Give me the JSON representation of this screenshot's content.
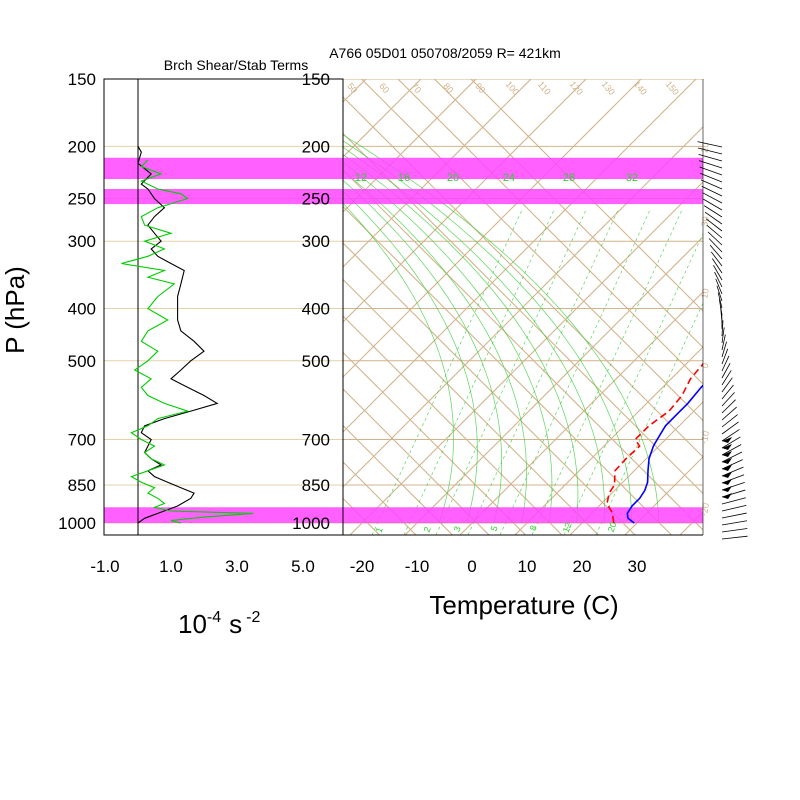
{
  "header": {
    "left_title": "Brch Shear/Stab Terms",
    "right_title": "A766 05D01 050708/2059 R= 421km"
  },
  "colors": {
    "isotherm_grid": "#d2b48c",
    "dry_adiabat": "#d2b48c",
    "moist_adiabat": "#32cd32",
    "mixing_ratio": "#32cd32",
    "highlight_band": "#ff44ff",
    "temperature": "#0000ff",
    "dewpoint": "#ff0000",
    "shear": "#000000",
    "stability": "#00cc00"
  },
  "chart_data": [
    {
      "type": "line",
      "panel": "shear-stability",
      "title": "Brch Shear/Stab Terms",
      "xlabel": "10-4 s -2",
      "xlabel_base": "10",
      "xlabel_exp": "-4",
      "xlabel_unit": "s",
      "xlabel_unit_exp": "-2",
      "ylabel": "P (hPa)",
      "xlim": [
        -1.0,
        5.0
      ],
      "x_ticks": [
        "-1.0",
        "1.0",
        "3.0",
        "5.0"
      ],
      "x_tick_values": [
        -1.0,
        1.0,
        3.0,
        5.0
      ],
      "y_ticks": [
        150,
        200,
        250,
        300,
        400,
        500,
        700,
        850,
        1000
      ],
      "ylim_hpa": [
        1000,
        150
      ],
      "y_scale": "log",
      "series": [
        {
          "color": "#000000",
          "points": [
            [
              0.0,
              1000
            ],
            [
              0.2,
              980
            ],
            [
              0.6,
              960
            ],
            [
              1.2,
              930
            ],
            [
              1.6,
              900
            ],
            [
              1.7,
              880
            ],
            [
              1.3,
              860
            ],
            [
              0.9,
              840
            ],
            [
              0.5,
              820
            ],
            [
              0.3,
              800
            ],
            [
              0.7,
              780
            ],
            [
              0.4,
              760
            ],
            [
              0.2,
              740
            ],
            [
              0.3,
              720
            ],
            [
              0.4,
              700
            ],
            [
              0.1,
              680
            ],
            [
              0.2,
              660
            ],
            [
              0.8,
              640
            ],
            [
              1.6,
              620
            ],
            [
              2.4,
              600
            ],
            [
              2.0,
              580
            ],
            [
              1.5,
              560
            ],
            [
              1.0,
              540
            ],
            [
              1.3,
              520
            ],
            [
              1.6,
              500
            ],
            [
              2.0,
              480
            ],
            [
              1.7,
              460
            ],
            [
              1.3,
              440
            ],
            [
              1.2,
              420
            ],
            [
              1.2,
              400
            ],
            [
              1.2,
              380
            ],
            [
              1.3,
              360
            ],
            [
              1.4,
              340
            ],
            [
              1.0,
              330
            ],
            [
              0.6,
              320
            ],
            [
              0.4,
              310
            ],
            [
              0.7,
              300
            ],
            [
              0.5,
              290
            ],
            [
              0.3,
              280
            ],
            [
              0.5,
              270
            ],
            [
              0.8,
              260
            ],
            [
              0.5,
              250
            ],
            [
              0.3,
              240
            ],
            [
              0.1,
              235
            ],
            [
              0.4,
              225
            ],
            [
              0.0,
              215
            ],
            [
              0.1,
              205
            ],
            [
              0.0,
              200
            ]
          ]
        },
        {
          "color": "#00cc00",
          "points": [
            [
              1.3,
              1000
            ],
            [
              1.0,
              990
            ],
            [
              1.3,
              985
            ],
            [
              2.0,
              975
            ],
            [
              3.5,
              960
            ],
            [
              1.0,
              950
            ],
            [
              0.5,
              935
            ],
            [
              0.8,
              920
            ],
            [
              0.6,
              900
            ],
            [
              0.3,
              880
            ],
            [
              0.5,
              860
            ],
            [
              0.1,
              840
            ],
            [
              -0.2,
              820
            ],
            [
              0.3,
              800
            ],
            [
              0.8,
              780
            ],
            [
              0.4,
              760
            ],
            [
              0.2,
              740
            ],
            [
              0.5,
              720
            ],
            [
              0.1,
              700
            ],
            [
              -0.2,
              680
            ],
            [
              0.3,
              660
            ],
            [
              0.6,
              640
            ],
            [
              1.5,
              620
            ],
            [
              0.8,
              600
            ],
            [
              0.3,
              580
            ],
            [
              0.1,
              560
            ],
            [
              0.4,
              540
            ],
            [
              -0.1,
              520
            ],
            [
              0.3,
              500
            ],
            [
              0.6,
              480
            ],
            [
              0.1,
              460
            ],
            [
              0.3,
              440
            ],
            [
              0.9,
              420
            ],
            [
              0.3,
              400
            ],
            [
              0.6,
              380
            ],
            [
              1.1,
              360
            ],
            [
              0.3,
              350
            ],
            [
              0.8,
              340
            ],
            [
              -0.5,
              330
            ],
            [
              0.3,
              320
            ],
            [
              0.8,
              310
            ],
            [
              0.2,
              300
            ],
            [
              1.0,
              290
            ],
            [
              0.2,
              280
            ],
            [
              0.1,
              270
            ],
            [
              0.6,
              260
            ],
            [
              1.5,
              250
            ],
            [
              1.3,
              245
            ],
            [
              0.6,
              240
            ],
            [
              0.1,
              232
            ],
            [
              0.7,
              225
            ],
            [
              0.1,
              218
            ],
            [
              0.3,
              212
            ]
          ]
        }
      ]
    },
    {
      "type": "line",
      "panel": "skew-t",
      "title": "A766 05D01 050708/2059 R= 421km",
      "xlabel": "Temperature (C)",
      "ylabel": "P (hPa)",
      "x_ticks": [
        "-20",
        "-10",
        "0",
        "10",
        "20",
        "30"
      ],
      "x_tick_values": [
        -20,
        -10,
        0,
        10,
        20,
        30
      ],
      "xlim_at_1000hPa": [
        -23.5,
        41
      ],
      "y_ticks": [
        150,
        200,
        250,
        300,
        400,
        500,
        700,
        850,
        1000
      ],
      "ylim_hpa": [
        1000,
        150
      ],
      "y_scale": "log",
      "mixing_ratio_labels": [
        "12",
        "16",
        "20",
        "24",
        "28",
        "32"
      ],
      "mixing_ratio_low_labels": [
        "1",
        "2",
        "3",
        "5",
        "8",
        "12",
        "20"
      ],
      "dry_adiabat_labels": [
        "50",
        "60",
        "70",
        "80",
        "90",
        "100",
        "110",
        "120",
        "130",
        "140",
        "150"
      ],
      "dry_adiabat_right_labels": [
        "20",
        "30",
        "10",
        "0",
        "-10",
        "-20"
      ],
      "highlight_bands_hpa": [
        [
          230,
          210
        ],
        [
          256,
          240
        ],
        [
          1000,
          935
        ]
      ],
      "series": [
        {
          "color": "#0000ff",
          "style": "solid",
          "points": [
            [
              29.5,
              1000
            ],
            [
              27.5,
              980
            ],
            [
              26.5,
              960
            ],
            [
              26.0,
              930
            ],
            [
              26.0,
              900
            ],
            [
              25.5,
              870
            ],
            [
              24.5,
              840
            ],
            [
              22.5,
              800
            ],
            [
              20.5,
              760
            ],
            [
              19.0,
              720
            ],
            [
              18.5,
              700
            ],
            [
              17.5,
              660
            ],
            [
              17.5,
              620
            ],
            [
              17.5,
              600
            ],
            [
              17.0,
              560
            ],
            [
              17.0,
              520
            ],
            [
              16.5,
              480
            ],
            [
              16.3,
              450
            ],
            [
              16.0,
              420
            ],
            [
              14.5,
              380
            ],
            [
              12.5,
              340
            ],
            [
              10.5,
              310
            ],
            [
              8.5,
              280
            ],
            [
              6.0,
              250
            ],
            [
              3.5,
              230
            ],
            [
              1.0,
              210
            ],
            [
              -1.5,
              195
            ]
          ]
        },
        {
          "color": "#ff0000",
          "style": "dashed",
          "points": [
            [
              25.8,
              1000
            ],
            [
              24.8,
              980
            ],
            [
              23.8,
              960
            ],
            [
              21.0,
              920
            ],
            [
              19.5,
              880
            ],
            [
              19.0,
              850
            ],
            [
              16.5,
              800
            ],
            [
              16.3,
              760
            ],
            [
              16.5,
              720
            ],
            [
              14.5,
              700
            ],
            [
              14.5,
              660
            ],
            [
              15.5,
              620
            ],
            [
              15.0,
              580
            ],
            [
              13.5,
              540
            ],
            [
              13.0,
              500
            ],
            [
              12.0,
              460
            ],
            [
              11.0,
              420
            ],
            [
              8.5,
              380
            ],
            [
              7.0,
              340
            ],
            [
              5.5,
              320
            ],
            [
              3.0,
              300
            ],
            [
              1.5,
              280
            ],
            [
              -1.0,
              260
            ],
            [
              -4.0,
              245
            ],
            [
              -7.0,
              230
            ],
            [
              -9.5,
              215
            ]
          ]
        }
      ]
    }
  ]
}
